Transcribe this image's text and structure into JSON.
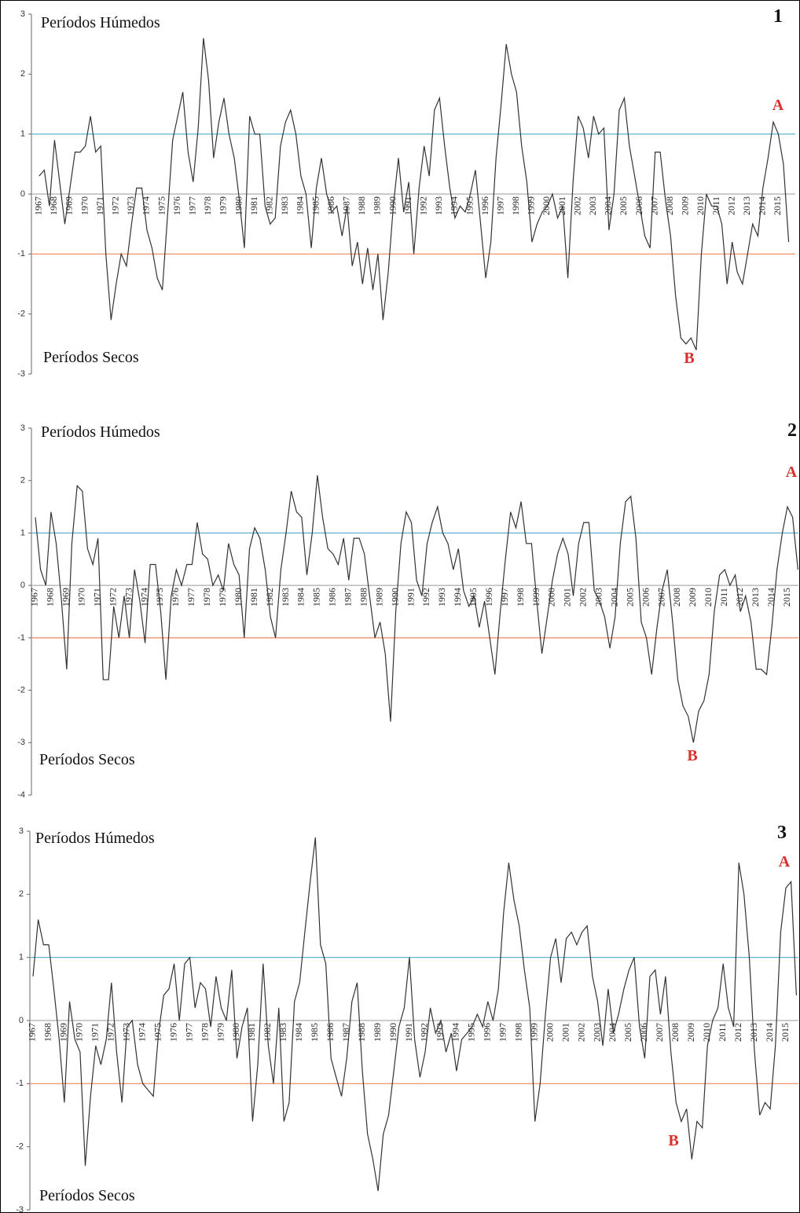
{
  "chart_data": [
    {
      "type": "line",
      "title": "1",
      "annotations": [
        "Períodos Húmedos",
        "Períodos Secos",
        "A",
        "B"
      ],
      "color": "#333333",
      "xlim": [
        1966.5,
        2016.1
      ],
      "ylim": [
        -3,
        3
      ],
      "yticks": [
        -3,
        -2,
        -1,
        0,
        1,
        2,
        3
      ],
      "xticks": [
        1967,
        1968,
        1969,
        1970,
        1971,
        1972,
        1973,
        1974,
        1975,
        1976,
        1977,
        1978,
        1979,
        1980,
        1981,
        1982,
        1983,
        1984,
        1985,
        1986,
        1987,
        1988,
        1989,
        1990,
        1991,
        1992,
        1993,
        1994,
        1995,
        1996,
        1997,
        1998,
        1999,
        2000,
        2001,
        2002,
        2003,
        2004,
        2005,
        2006,
        2007,
        2008,
        2009,
        2010,
        2011,
        2012,
        2013,
        2014,
        2015
      ],
      "reference_lines": [
        {
          "value": 1,
          "color": "#4bacc6"
        },
        {
          "value": -1,
          "color": "#f0845a"
        }
      ],
      "x": [
        1967,
        1967.33,
        1967.67,
        1968,
        1968.33,
        1968.67,
        1969,
        1969.33,
        1969.67,
        1970,
        1970.33,
        1970.67,
        1971,
        1971.33,
        1971.67,
        1972,
        1972.33,
        1972.67,
        1973,
        1973.33,
        1973.67,
        1974,
        1974.33,
        1974.67,
        1975,
        1975.33,
        1975.67,
        1976,
        1976.33,
        1976.67,
        1977,
        1977.33,
        1977.67,
        1978,
        1978.33,
        1978.67,
        1979,
        1979.33,
        1979.67,
        1980,
        1980.33,
        1980.67,
        1981,
        1981.33,
        1981.67,
        1982,
        1982.33,
        1982.67,
        1983,
        1983.33,
        1983.67,
        1984,
        1984.33,
        1984.67,
        1985,
        1985.33,
        1985.67,
        1986,
        1986.33,
        1986.67,
        1987,
        1987.33,
        1987.67,
        1988,
        1988.33,
        1988.67,
        1989,
        1989.33,
        1989.67,
        1990,
        1990.33,
        1990.67,
        1991,
        1991.33,
        1991.67,
        1992,
        1992.33,
        1992.67,
        1993,
        1993.33,
        1993.67,
        1994,
        1994.33,
        1994.67,
        1995,
        1995.33,
        1995.67,
        1996,
        1996.33,
        1996.67,
        1997,
        1997.33,
        1997.67,
        1998,
        1998.33,
        1998.67,
        1999,
        1999.33,
        1999.67,
        2000,
        2000.33,
        2000.67,
        2001,
        2001.33,
        2001.67,
        2002,
        2002.33,
        2002.67,
        2003,
        2003.33,
        2003.67,
        2004,
        2004.33,
        2004.67,
        2005,
        2005.33,
        2005.67,
        2006,
        2006.33,
        2006.67,
        2007,
        2007.33,
        2007.67,
        2008,
        2008.33,
        2008.67,
        2009,
        2009.33,
        2009.67,
        2010,
        2010.33,
        2010.67,
        2011,
        2011.33,
        2011.67,
        2012,
        2012.33,
        2012.67,
        2013,
        2013.33,
        2013.67,
        2014,
        2014.33,
        2014.67,
        2015,
        2015.33,
        2015.67
      ],
      "values": [
        0.3,
        0.4,
        -0.2,
        0.9,
        0.2,
        -0.5,
        0.1,
        0.7,
        0.7,
        0.8,
        1.3,
        0.7,
        0.8,
        -1.0,
        -2.1,
        -1.5,
        -1.0,
        -1.2,
        -0.5,
        0.1,
        0.1,
        -0.6,
        -0.9,
        -1.4,
        -1.6,
        -0.4,
        0.9,
        1.3,
        1.7,
        0.7,
        0.2,
        1.1,
        2.6,
        1.9,
        0.6,
        1.2,
        1.6,
        1.0,
        0.6,
        -0.1,
        -0.9,
        1.3,
        1.0,
        1.0,
        -0.2,
        -0.5,
        -0.4,
        0.8,
        1.2,
        1.4,
        1.0,
        0.3,
        0.0,
        -0.9,
        0.1,
        0.6,
        0.0,
        -0.3,
        -0.2,
        -0.7,
        -0.2,
        -1.2,
        -0.8,
        -1.5,
        -0.9,
        -1.6,
        -1.0,
        -2.1,
        -1.3,
        -0.2,
        0.6,
        -0.3,
        0.2,
        -1.0,
        0.1,
        0.8,
        0.3,
        1.4,
        1.6,
        0.8,
        0.1,
        -0.4,
        -0.2,
        -0.3,
        0.0,
        0.4,
        -0.5,
        -1.4,
        -0.8,
        0.6,
        1.5,
        2.5,
        2.0,
        1.7,
        0.8,
        0.2,
        -0.8,
        -0.5,
        -0.3,
        -0.2,
        0.0,
        -0.4,
        -0.2,
        -1.4,
        0.2,
        1.3,
        1.1,
        0.6,
        1.3,
        1.0,
        1.1,
        -0.6,
        0.0,
        1.4,
        1.6,
        0.8,
        0.3,
        -0.2,
        -0.7,
        -0.9,
        0.7,
        0.7,
        -0.1,
        -0.7,
        -1.7,
        -2.4,
        -2.5,
        -2.4,
        -2.6,
        -1.0,
        0.0,
        -0.2,
        -0.2,
        -0.5,
        -1.5,
        -0.8,
        -1.3,
        -1.5,
        -1.0,
        -0.5,
        -0.7,
        0.1,
        0.6,
        1.2,
        1.0,
        0.5,
        -0.8
      ]
    },
    {
      "type": "line",
      "title": "2",
      "annotations": [
        "Períodos Húmedos",
        "Períodos Secos",
        "A",
        "B"
      ],
      "color": "#333333",
      "xlim": [
        1966.75,
        2015.7
      ],
      "ylim": [
        -4,
        3
      ],
      "yticks": [
        -4,
        -3,
        -2,
        -1,
        0,
        1,
        2,
        3
      ],
      "xticks": [
        1967,
        1968,
        1969,
        1970,
        1971,
        1972,
        1973,
        1974,
        1975,
        1976,
        1977,
        1978,
        1979,
        1980,
        1981,
        1982,
        1983,
        1984,
        1985,
        1986,
        1987,
        1988,
        1989,
        1990,
        1991,
        1992,
        1993,
        1994,
        1995,
        1996,
        1997,
        1998,
        1999,
        2000,
        2001,
        2002,
        2003,
        2004,
        2005,
        2006,
        2007,
        2008,
        2009,
        2010,
        2011,
        2012,
        2013,
        2014,
        2015
      ],
      "reference_lines": [
        {
          "value": 1,
          "color": "#4bacc6"
        },
        {
          "value": -1,
          "color": "#f0845a"
        }
      ],
      "x": [
        1967,
        1967.33,
        1967.67,
        1968,
        1968.33,
        1968.67,
        1969,
        1969.33,
        1969.67,
        1970,
        1970.33,
        1970.67,
        1971,
        1971.33,
        1971.67,
        1972,
        1972.33,
        1972.67,
        1973,
        1973.33,
        1973.67,
        1974,
        1974.33,
        1974.67,
        1975,
        1975.33,
        1975.67,
        1976,
        1976.33,
        1976.67,
        1977,
        1977.33,
        1977.67,
        1978,
        1978.33,
        1978.67,
        1979,
        1979.33,
        1979.67,
        1980,
        1980.33,
        1980.67,
        1981,
        1981.33,
        1981.67,
        1982,
        1982.33,
        1982.67,
        1983,
        1983.33,
        1983.67,
        1984,
        1984.33,
        1984.67,
        1985,
        1985.33,
        1985.67,
        1986,
        1986.33,
        1986.67,
        1987,
        1987.33,
        1987.67,
        1988,
        1988.33,
        1988.67,
        1989,
        1989.33,
        1989.67,
        1990,
        1990.33,
        1990.67,
        1991,
        1991.33,
        1991.67,
        1992,
        1992.33,
        1992.67,
        1993,
        1993.33,
        1993.67,
        1994,
        1994.33,
        1994.67,
        1995,
        1995.33,
        1995.67,
        1996,
        1996.33,
        1996.67,
        1997,
        1997.33,
        1997.67,
        1998,
        1998.33,
        1998.67,
        1999,
        1999.33,
        1999.67,
        2000,
        2000.33,
        2000.67,
        2001,
        2001.33,
        2001.67,
        2002,
        2002.33,
        2002.67,
        2003,
        2003.33,
        2003.67,
        2004,
        2004.33,
        2004.67,
        2005,
        2005.33,
        2005.67,
        2006,
        2006.33,
        2006.67,
        2007,
        2007.33,
        2007.67,
        2008,
        2008.33,
        2008.67,
        2009,
        2009.33,
        2009.67,
        2010,
        2010.33,
        2010.67,
        2011,
        2011.33,
        2011.67,
        2012,
        2012.33,
        2012.67,
        2013,
        2013.33,
        2013.67,
        2014,
        2014.33,
        2014.67,
        2015,
        2015.33,
        2015.67
      ],
      "values": [
        1.3,
        0.3,
        0.0,
        1.4,
        0.8,
        -0.3,
        -1.6,
        0.8,
        1.9,
        1.8,
        0.7,
        0.4,
        0.9,
        -1.8,
        -1.8,
        -0.4,
        -1.0,
        -0.2,
        -1.0,
        0.3,
        -0.3,
        -1.1,
        0.4,
        0.4,
        -0.5,
        -1.8,
        -0.2,
        0.3,
        0.0,
        0.4,
        0.4,
        1.2,
        0.6,
        0.5,
        0.0,
        0.2,
        -0.1,
        0.8,
        0.4,
        0.2,
        -1.0,
        0.7,
        1.1,
        0.9,
        0.3,
        -0.6,
        -1.0,
        0.3,
        1.0,
        1.8,
        1.4,
        1.3,
        0.2,
        1.0,
        2.1,
        1.3,
        0.7,
        0.6,
        0.4,
        0.9,
        0.1,
        0.9,
        0.9,
        0.6,
        -0.2,
        -1.0,
        -0.7,
        -1.3,
        -2.6,
        -0.5,
        0.8,
        1.4,
        1.2,
        0.1,
        -0.2,
        0.8,
        1.2,
        1.5,
        1.0,
        0.8,
        0.3,
        0.7,
        -0.1,
        -0.4,
        -0.2,
        -0.8,
        -0.3,
        -1.0,
        -1.7,
        -0.5,
        0.5,
        1.4,
        1.1,
        1.6,
        0.8,
        0.8,
        -0.3,
        -1.3,
        -0.6,
        0.1,
        0.6,
        0.9,
        0.6,
        -0.2,
        0.8,
        1.2,
        1.2,
        -0.1,
        -0.3,
        -0.6,
        -1.2,
        -0.6,
        0.8,
        1.6,
        1.7,
        0.9,
        -0.7,
        -1.0,
        -1.7,
        -0.8,
        -0.1,
        0.3,
        -0.7,
        -1.8,
        -2.3,
        -2.5,
        -3.0,
        -2.4,
        -2.2,
        -1.7,
        -0.5,
        0.2,
        0.3,
        0.0,
        0.2,
        -0.5,
        -0.2,
        -0.7,
        -1.6,
        -1.6,
        -1.7,
        -0.8,
        0.3,
        1.0,
        1.5,
        1.3,
        0.3
      ]
    },
    {
      "type": "line",
      "title": "3",
      "annotations": [
        "Períodos Húmedos",
        "Períodos Secos",
        "A",
        "B"
      ],
      "color": "#333333",
      "xlim": [
        1966.8,
        2015.8
      ],
      "ylim": [
        -3,
        3
      ],
      "yticks": [
        -3,
        -2,
        -1,
        0,
        1,
        2,
        3
      ],
      "xticks": [
        1967,
        1968,
        1969,
        1970,
        1971,
        1972,
        1973,
        1974,
        1975,
        1976,
        1977,
        1978,
        1979,
        1980,
        1981,
        1982,
        1983,
        1984,
        1985,
        1986,
        1987,
        1988,
        1989,
        1990,
        1991,
        1992,
        1993,
        1994,
        1995,
        1996,
        1997,
        1998,
        1999,
        2000,
        2001,
        2002,
        2003,
        2004,
        2005,
        2006,
        2007,
        2008,
        2009,
        2010,
        2011,
        2012,
        2013,
        2014,
        2015
      ],
      "reference_lines": [
        {
          "value": 1,
          "color": "#4bacc6"
        },
        {
          "value": -1,
          "color": "#f0845a"
        }
      ],
      "x": [
        1967,
        1967.33,
        1967.67,
        1968,
        1968.33,
        1968.67,
        1969,
        1969.33,
        1969.67,
        1970,
        1970.33,
        1970.67,
        1971,
        1971.33,
        1971.67,
        1972,
        1972.33,
        1972.67,
        1973,
        1973.33,
        1973.67,
        1974,
        1974.33,
        1974.67,
        1975,
        1975.33,
        1975.67,
        1976,
        1976.33,
        1976.67,
        1977,
        1977.33,
        1977.67,
        1978,
        1978.33,
        1978.67,
        1979,
        1979.33,
        1979.67,
        1980,
        1980.33,
        1980.67,
        1981,
        1981.33,
        1981.67,
        1982,
        1982.33,
        1982.67,
        1983,
        1983.33,
        1983.67,
        1984,
        1984.33,
        1984.67,
        1985,
        1985.33,
        1985.67,
        1986,
        1986.33,
        1986.67,
        1987,
        1987.33,
        1987.67,
        1988,
        1988.33,
        1988.67,
        1989,
        1989.33,
        1989.67,
        1990,
        1990.33,
        1990.67,
        1991,
        1991.33,
        1991.67,
        1992,
        1992.33,
        1992.67,
        1993,
        1993.33,
        1993.67,
        1994,
        1994.33,
        1994.67,
        1995,
        1995.33,
        1995.67,
        1996,
        1996.33,
        1996.67,
        1997,
        1997.33,
        1997.67,
        1998,
        1998.33,
        1998.67,
        1999,
        1999.33,
        1999.67,
        2000,
        2000.33,
        2000.67,
        2001,
        2001.33,
        2001.67,
        2002,
        2002.33,
        2002.67,
        2003,
        2003.33,
        2003.67,
        2004,
        2004.33,
        2004.67,
        2005,
        2005.33,
        2005.67,
        2006,
        2006.33,
        2006.67,
        2007,
        2007.33,
        2007.67,
        2008,
        2008.33,
        2008.67,
        2009,
        2009.33,
        2009.67,
        2010,
        2010.33,
        2010.67,
        2011,
        2011.33,
        2011.67,
        2012,
        2012.33,
        2012.67,
        2013,
        2013.33,
        2013.67,
        2014,
        2014.33,
        2014.67,
        2015,
        2015.33,
        2015.67
      ],
      "values": [
        0.7,
        1.6,
        1.2,
        1.2,
        0.5,
        -0.3,
        -1.3,
        0.3,
        -0.3,
        -0.5,
        -2.3,
        -1.2,
        -0.4,
        -0.7,
        -0.3,
        0.6,
        -0.5,
        -1.3,
        -0.1,
        0.0,
        -0.7,
        -1.0,
        -1.1,
        -1.2,
        -0.2,
        0.4,
        0.5,
        0.9,
        0.0,
        0.9,
        1.0,
        0.2,
        0.6,
        0.5,
        -0.1,
        0.7,
        0.2,
        0.0,
        0.8,
        -0.6,
        -0.1,
        0.2,
        -1.6,
        -0.7,
        0.9,
        -0.4,
        -1.0,
        0.2,
        -1.6,
        -1.3,
        0.3,
        0.6,
        1.4,
        2.2,
        2.9,
        1.2,
        0.9,
        -0.6,
        -0.9,
        -1.2,
        -0.6,
        0.3,
        0.6,
        -0.8,
        -1.8,
        -2.2,
        -2.7,
        -1.8,
        -1.5,
        -0.8,
        -0.1,
        0.2,
        1.0,
        -0.3,
        -0.9,
        -0.5,
        0.2,
        -0.2,
        0.0,
        -0.5,
        -0.2,
        -0.8,
        -0.3,
        -0.2,
        -0.1,
        0.1,
        -0.1,
        0.3,
        0.0,
        0.5,
        1.7,
        2.5,
        1.9,
        1.5,
        0.8,
        0.2,
        -1.6,
        -1.0,
        0.1,
        1.0,
        1.3,
        0.6,
        1.3,
        1.4,
        1.2,
        1.4,
        1.5,
        0.7,
        0.3,
        -0.4,
        0.5,
        -0.2,
        0.1,
        0.5,
        0.8,
        1.0,
        -0.1,
        -0.6,
        0.7,
        0.8,
        0.1,
        0.7,
        -0.5,
        -1.3,
        -1.6,
        -1.4,
        -2.2,
        -1.6,
        -1.7,
        -0.4,
        0.0,
        0.2,
        0.9,
        0.2,
        -0.1,
        2.5,
        2.0,
        1.0,
        -0.5,
        -1.5,
        -1.3,
        -1.4,
        -0.4,
        1.4,
        2.1,
        2.2,
        0.4
      ]
    }
  ]
}
